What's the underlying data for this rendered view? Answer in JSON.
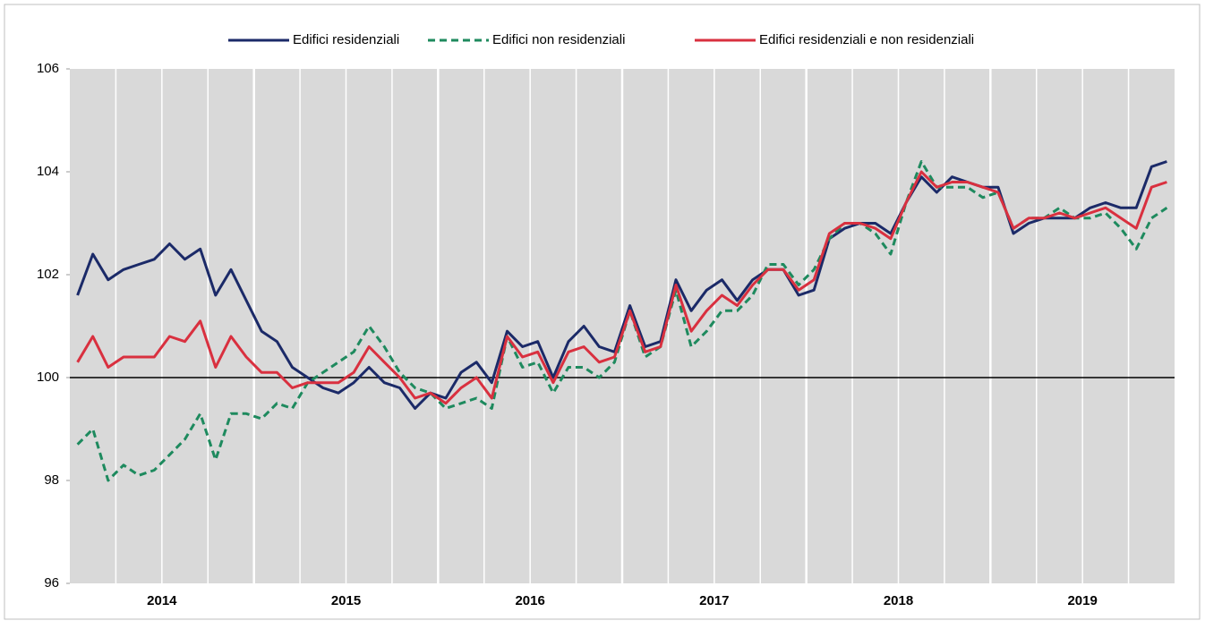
{
  "chart_data": {
    "type": "line",
    "categories": [
      null,
      null,
      null,
      null,
      null,
      null,
      null,
      null,
      null,
      null,
      null,
      null,
      null,
      null,
      null,
      null,
      null,
      null,
      null,
      null,
      null,
      null,
      null,
      null,
      null,
      null,
      null,
      null,
      null,
      null,
      null,
      null,
      null,
      null,
      null,
      null,
      null,
      null,
      null,
      null,
      null,
      null,
      null,
      null,
      null,
      null,
      null,
      null,
      null,
      null,
      null,
      null,
      null,
      null,
      null,
      null,
      null,
      null,
      null,
      null,
      null,
      null,
      null,
      null,
      null,
      null,
      null,
      null,
      null,
      null,
      null,
      null
    ],
    "groups": [
      "2014",
      "2015",
      "2016",
      "2017",
      "2018",
      "2019"
    ],
    "series": [
      {
        "name": "Edifici residenziali",
        "color": "#1b2a68",
        "style": "solid",
        "values": [
          101.6,
          102.4,
          101.9,
          102.1,
          102.2,
          102.3,
          102.6,
          102.3,
          102.5,
          101.6,
          102.1,
          101.5,
          100.9,
          100.7,
          100.2,
          100.0,
          99.8,
          99.7,
          99.9,
          100.2,
          99.9,
          99.8,
          99.4,
          99.7,
          99.6,
          100.1,
          100.3,
          99.9,
          100.9,
          100.6,
          100.7,
          100.0,
          100.7,
          101.0,
          100.6,
          100.5,
          101.4,
          100.6,
          100.7,
          101.9,
          101.3,
          101.7,
          101.9,
          101.5,
          101.9,
          102.1,
          102.1,
          101.6,
          101.7,
          102.7,
          102.9,
          103.0,
          103.0,
          102.8,
          103.4,
          103.9,
          103.6,
          103.9,
          103.8,
          103.7,
          103.7,
          102.8,
          103.0,
          103.1,
          103.1,
          103.1,
          103.3,
          103.4,
          103.3,
          103.3,
          104.1,
          104.2
        ]
      },
      {
        "name": "Edifici non residenziali",
        "color": "#1e8a5e",
        "style": "dashed",
        "values": [
          98.7,
          99.0,
          98.0,
          98.3,
          98.1,
          98.2,
          98.5,
          98.8,
          99.3,
          98.4,
          99.3,
          99.3,
          99.2,
          99.5,
          99.4,
          99.9,
          100.1,
          100.3,
          100.5,
          101.0,
          100.6,
          100.1,
          99.8,
          99.7,
          99.4,
          99.5,
          99.6,
          99.4,
          100.8,
          100.2,
          100.3,
          99.7,
          100.2,
          100.2,
          100.0,
          100.3,
          101.3,
          100.4,
          100.6,
          101.7,
          100.6,
          100.9,
          101.3,
          101.3,
          101.6,
          102.2,
          102.2,
          101.8,
          102.1,
          102.7,
          103.0,
          103.0,
          102.8,
          102.4,
          103.4,
          104.2,
          103.7,
          103.7,
          103.7,
          103.5,
          103.6,
          102.9,
          103.1,
          103.1,
          103.3,
          103.1,
          103.1,
          103.2,
          102.9,
          102.5,
          103.1,
          103.3
        ]
      },
      {
        "name": "Edifici residenziali e non residenziali",
        "color": "#d9303f",
        "style": "solid",
        "values": [
          100.3,
          100.8,
          100.2,
          100.4,
          100.4,
          100.4,
          100.8,
          100.7,
          101.1,
          100.2,
          100.8,
          100.4,
          100.1,
          100.1,
          99.8,
          99.9,
          99.9,
          99.9,
          100.1,
          100.6,
          100.3,
          100.0,
          99.6,
          99.7,
          99.5,
          99.8,
          100.0,
          99.6,
          100.8,
          100.4,
          100.5,
          99.9,
          100.5,
          100.6,
          100.3,
          100.4,
          101.3,
          100.5,
          100.6,
          101.8,
          100.9,
          101.3,
          101.6,
          101.4,
          101.8,
          102.1,
          102.1,
          101.7,
          101.9,
          102.8,
          103.0,
          103.0,
          102.9,
          102.7,
          103.4,
          104.0,
          103.7,
          103.8,
          103.8,
          103.7,
          103.6,
          102.9,
          103.1,
          103.1,
          103.2,
          103.1,
          103.2,
          103.3,
          103.1,
          102.9,
          103.7,
          103.8
        ]
      }
    ],
    "ylim": [
      96,
      106
    ],
    "yticks": [
      96,
      98,
      100,
      102,
      104,
      106
    ],
    "reference_line": 100,
    "legend": "top"
  }
}
